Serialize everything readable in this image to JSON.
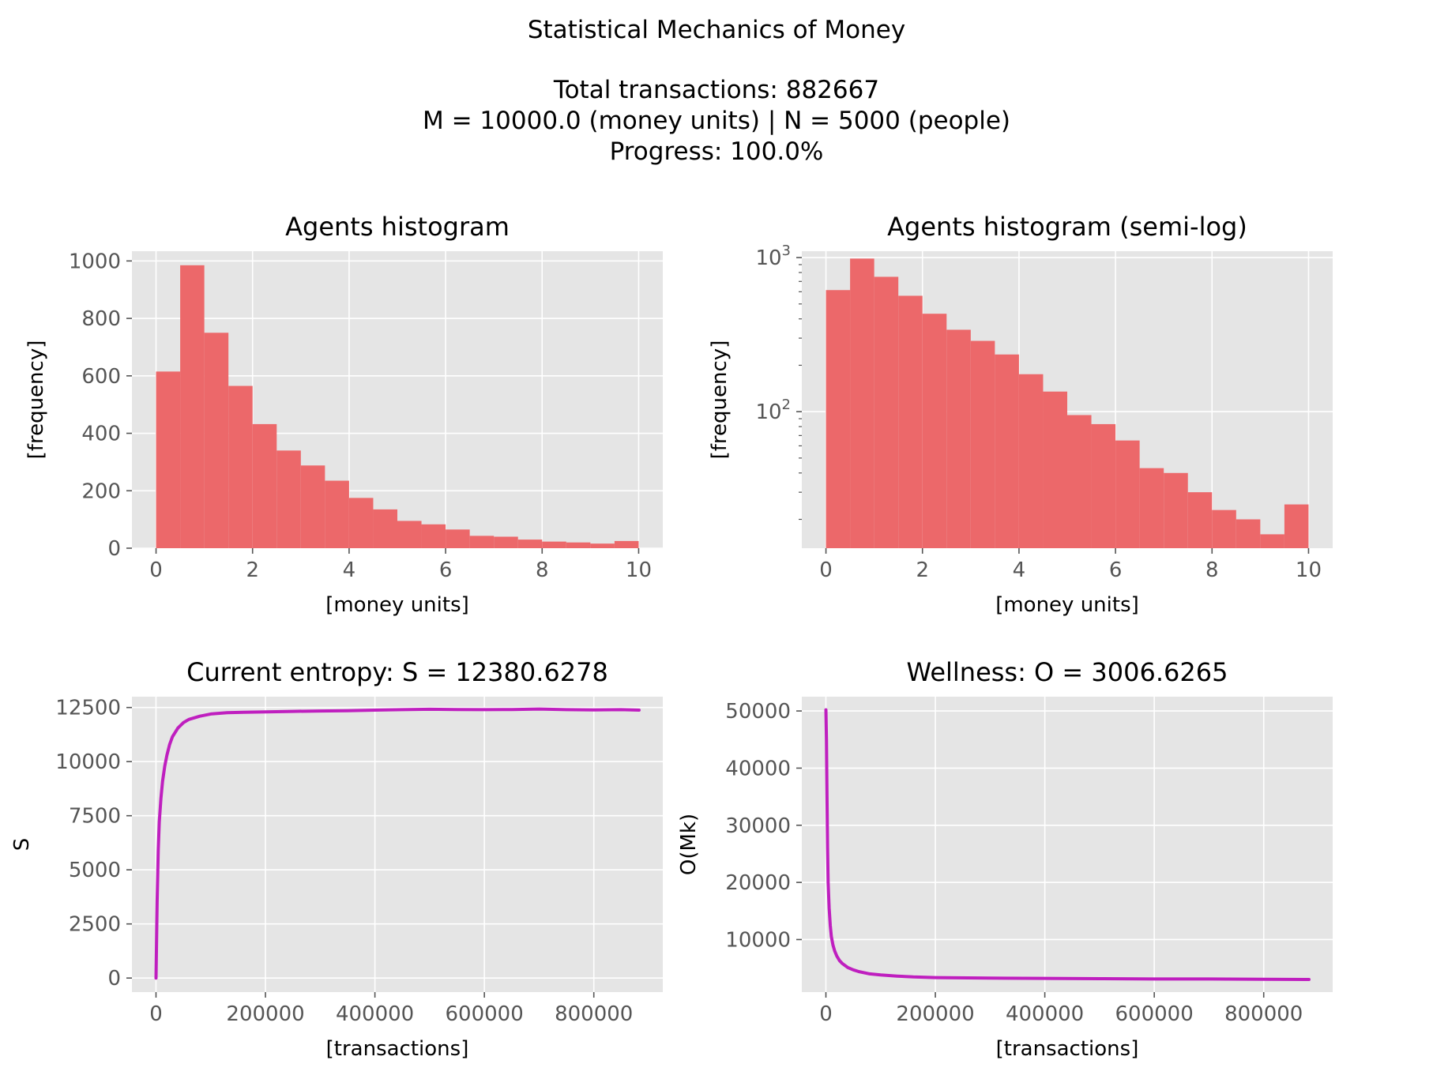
{
  "figure": {
    "suptitle_lines": [
      "Statistical Mechanics of Money",
      "",
      "Total transactions: 882667",
      "M = 10000.0 (money units)   |    N = 5000 (people)",
      "Progress: 100.0%"
    ],
    "colors": {
      "background": "#ffffff",
      "axes_background": "#e5e5e5",
      "grid": "#ffffff",
      "hist": "#ec686a",
      "line": "#bf1fbf",
      "tick_text": "#555555"
    }
  },
  "chart_data": [
    {
      "type": "bar",
      "title": "Agents histogram",
      "xlabel": "[money units]",
      "ylabel": "[frequency]",
      "bin_edges": [
        0,
        0.5,
        1.0,
        1.5,
        2.0,
        2.5,
        3.0,
        3.5,
        4.0,
        4.5,
        5.0,
        5.5,
        6.0,
        6.5,
        7.0,
        7.5,
        8.0,
        8.5,
        9.0,
        9.5,
        10.0
      ],
      "values": [
        615,
        985,
        750,
        565,
        432,
        340,
        288,
        235,
        175,
        135,
        95,
        83,
        65,
        43,
        40,
        30,
        23,
        20,
        16,
        25
      ],
      "xlim": [
        -0.5,
        10.5
      ],
      "ylim": [
        0,
        1034
      ],
      "xticks": [
        0,
        2,
        4,
        6,
        8,
        10
      ],
      "yticks": [
        0,
        200,
        400,
        600,
        800,
        1000
      ],
      "yscale": "linear",
      "grid": true
    },
    {
      "type": "bar",
      "title": "Agents histogram (semi-log)",
      "xlabel": "[money units]",
      "ylabel": "[frequency]",
      "bin_edges": [
        0,
        0.5,
        1.0,
        1.5,
        2.0,
        2.5,
        3.0,
        3.5,
        4.0,
        4.5,
        5.0,
        5.5,
        6.0,
        6.5,
        7.0,
        7.5,
        8.0,
        8.5,
        9.0,
        9.5,
        10.0
      ],
      "values": [
        615,
        985,
        750,
        565,
        432,
        340,
        288,
        235,
        175,
        135,
        95,
        83,
        65,
        43,
        40,
        30,
        23,
        20,
        16,
        25
      ],
      "xlim": [
        -0.5,
        10.5
      ],
      "ylim": [
        13,
        1100
      ],
      "xticks": [
        0,
        2,
        4,
        6,
        8,
        10
      ],
      "yticks_major": [
        {
          "value": 100,
          "base": "10",
          "exp": "2"
        },
        {
          "value": 1000,
          "base": "10",
          "exp": "3"
        }
      ],
      "yticks_minor": [
        20,
        30,
        40,
        50,
        60,
        70,
        80,
        90,
        200,
        300,
        400,
        500,
        600,
        700,
        800,
        900
      ],
      "yscale": "log",
      "grid": true
    },
    {
      "type": "line",
      "title": "Current entropy: S = 12380.6278",
      "xlabel": "[transactions]",
      "ylabel": "S",
      "x": [
        0,
        2000,
        4000,
        6000,
        9000,
        12000,
        16000,
        20000,
        25000,
        30000,
        40000,
        50000,
        60000,
        80000,
        100000,
        130000,
        160000,
        200000,
        250000,
        300000,
        350000,
        400000,
        450000,
        500000,
        550000,
        600000,
        650000,
        700000,
        750000,
        800000,
        850000,
        882667
      ],
      "y": [
        0,
        3500,
        5900,
        7200,
        8300,
        9100,
        9800,
        10300,
        10800,
        11150,
        11550,
        11800,
        11950,
        12100,
        12200,
        12260,
        12280,
        12300,
        12320,
        12340,
        12350,
        12380,
        12400,
        12420,
        12410,
        12400,
        12410,
        12430,
        12400,
        12390,
        12400,
        12380
      ],
      "xlim": [
        -44000,
        926000
      ],
      "ylim": [
        -650,
        13000
      ],
      "xticks": [
        0,
        200000,
        400000,
        600000,
        800000
      ],
      "yticks": [
        0,
        2500,
        5000,
        7500,
        10000,
        12500
      ],
      "grid": true
    },
    {
      "type": "line",
      "title": "Wellness: O = 3006.6265",
      "xlabel": "[transactions]",
      "ylabel": "O(Mk)",
      "x": [
        0,
        1000,
        2000,
        3000,
        4000,
        6000,
        8000,
        10000,
        13000,
        16000,
        20000,
        25000,
        30000,
        40000,
        50000,
        60000,
        80000,
        100000,
        130000,
        160000,
        200000,
        300000,
        400000,
        500000,
        600000,
        700000,
        800000,
        882667
      ],
      "y": [
        50200,
        45000,
        35000,
        26000,
        20000,
        15500,
        12500,
        10500,
        9000,
        8000,
        7100,
        6300,
        5800,
        5100,
        4700,
        4400,
        4000,
        3800,
        3600,
        3450,
        3350,
        3250,
        3200,
        3150,
        3100,
        3100,
        3050,
        3007
      ],
      "xlim": [
        -44000,
        926000
      ],
      "ylim": [
        800,
        52500
      ],
      "xticks": [
        0,
        200000,
        400000,
        600000,
        800000
      ],
      "yticks": [
        10000,
        20000,
        30000,
        40000,
        50000
      ],
      "grid": true
    }
  ]
}
